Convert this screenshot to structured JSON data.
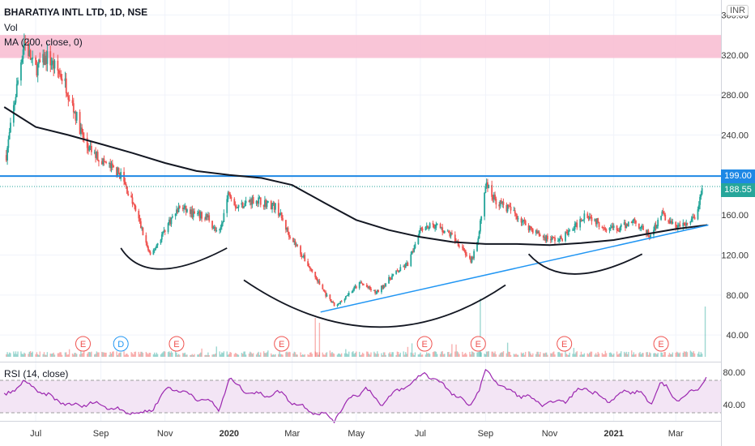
{
  "header": {
    "symbol_line": "BHARATIYA INTL LTD, 1D, NSE",
    "volume_label": "Vol",
    "ma_label": "MA (200, close, 0)",
    "rsi_label": "RSI (14, close)",
    "currency": "INR"
  },
  "price_tags": {
    "resistance": "199.00",
    "last": "188.55"
  },
  "colors": {
    "up": "#26a69a",
    "down": "#ef5350",
    "ma": "#131722",
    "trendline": "#2196f3",
    "resistance_line": "#1e88e5",
    "zone": "#f8bbd0",
    "rsi_line": "#9c27b0",
    "rsi_band": "#f3e5f5",
    "last_price": "#26a69a"
  },
  "chart_data": {
    "type": "candlestick",
    "x_tick_labels": [
      "Jul",
      "Sep",
      "Nov",
      "2020",
      "Mar",
      "May",
      "Jul",
      "Sep",
      "Nov",
      "2021",
      "Mar"
    ],
    "y_ticks": [
      40,
      80,
      120,
      160,
      240,
      280,
      320,
      360
    ],
    "y_range": [
      15,
      375
    ],
    "resistance_level": 199.0,
    "last_price": 188.55,
    "supply_zone": [
      317,
      340
    ],
    "price_path": [
      [
        "2019-06-03",
        220
      ],
      [
        "2019-06-20",
        335
      ],
      [
        "2019-06-30",
        305
      ],
      [
        "2019-07-12",
        318
      ],
      [
        "2019-07-28",
        295
      ],
      [
        "2019-08-18",
        228
      ],
      [
        "2019-09-05",
        212
      ],
      [
        "2019-09-20",
        200
      ],
      [
        "2019-10-05",
        162
      ],
      [
        "2019-10-18",
        118
      ],
      [
        "2019-11-03",
        150
      ],
      [
        "2019-11-15",
        168
      ],
      [
        "2019-11-30",
        160
      ],
      [
        "2019-12-12",
        158
      ],
      [
        "2019-12-22",
        138
      ],
      [
        "2020-01-01",
        185
      ],
      [
        "2020-01-08",
        168
      ],
      [
        "2020-01-25",
        176
      ],
      [
        "2020-02-15",
        168
      ],
      [
        "2020-02-25",
        145
      ],
      [
        "2020-03-15",
        112
      ],
      [
        "2020-04-05",
        75
      ],
      [
        "2020-04-12",
        68
      ],
      [
        "2020-04-20",
        78
      ],
      [
        "2020-05-05",
        92
      ],
      [
        "2020-05-20",
        82
      ],
      [
        "2020-06-05",
        100
      ],
      [
        "2020-06-20",
        112
      ],
      [
        "2020-07-01",
        148
      ],
      [
        "2020-07-15",
        150
      ],
      [
        "2020-07-30",
        140
      ],
      [
        "2020-08-10",
        128
      ],
      [
        "2020-08-18",
        112
      ],
      [
        "2020-08-25",
        135
      ],
      [
        "2020-09-01",
        192
      ],
      [
        "2020-09-10",
        175
      ],
      [
        "2020-09-25",
        165
      ],
      [
        "2020-10-10",
        150
      ],
      [
        "2020-10-25",
        138
      ],
      [
        "2020-11-10",
        135
      ],
      [
        "2020-11-25",
        148
      ],
      [
        "2020-12-05",
        162
      ],
      [
        "2020-12-20",
        150
      ],
      [
        "2021-01-05",
        145
      ],
      [
        "2021-01-20",
        155
      ],
      [
        "2021-02-05",
        138
      ],
      [
        "2021-02-15",
        162
      ],
      [
        "2021-02-28",
        148
      ],
      [
        "2021-03-10",
        150
      ],
      [
        "2021-03-20",
        158
      ],
      [
        "2021-03-28",
        192
      ]
    ],
    "ma200_path": [
      [
        "2019-06-01",
        268
      ],
      [
        "2019-07-01",
        248
      ],
      [
        "2019-08-01",
        240
      ],
      [
        "2019-09-01",
        231
      ],
      [
        "2019-10-01",
        222
      ],
      [
        "2019-11-01",
        212
      ],
      [
        "2019-12-01",
        204
      ],
      [
        "2020-01-01",
        200
      ],
      [
        "2020-02-01",
        197
      ],
      [
        "2020-03-01",
        190
      ],
      [
        "2020-04-01",
        172
      ],
      [
        "2020-05-01",
        155
      ],
      [
        "2020-06-01",
        145
      ],
      [
        "2020-07-01",
        138
      ],
      [
        "2020-08-01",
        133
      ],
      [
        "2020-09-01",
        131
      ],
      [
        "2020-10-01",
        131
      ],
      [
        "2020-11-01",
        130
      ],
      [
        "2020-12-01",
        132
      ],
      [
        "2021-01-01",
        135
      ],
      [
        "2021-02-01",
        141
      ],
      [
        "2021-03-01",
        146
      ],
      [
        "2021-03-31",
        150
      ]
    ],
    "trendline": [
      [
        "2020-03-28",
        63
      ],
      [
        "2021-04-01",
        150
      ]
    ],
    "drawn_arcs": [
      [
        [
          "2019-09-20",
          127
        ],
        [
          "2019-10-28",
          106
        ],
        [
          "2019-12-30",
          127
        ]
      ],
      [
        [
          "2020-01-15",
          95
        ],
        [
          "2020-05-20",
          48
        ],
        [
          "2020-09-20",
          90
        ]
      ],
      [
        [
          "2020-10-12",
          121
        ],
        [
          "2020-11-25",
          101
        ],
        [
          "2021-01-28",
          121
        ]
      ]
    ],
    "events": [
      {
        "label": "E",
        "date": "2019-08-15",
        "kind": "earnings"
      },
      {
        "label": "D",
        "date": "2019-09-20",
        "kind": "dividend"
      },
      {
        "label": "E",
        "date": "2019-11-12",
        "kind": "earnings"
      },
      {
        "label": "E",
        "date": "2020-02-20",
        "kind": "earnings"
      },
      {
        "label": "E",
        "date": "2020-07-05",
        "kind": "earnings"
      },
      {
        "label": "E",
        "date": "2020-08-25",
        "kind": "earnings"
      },
      {
        "label": "E",
        "date": "2020-11-15",
        "kind": "earnings"
      },
      {
        "label": "E",
        "date": "2021-02-15",
        "kind": "earnings"
      }
    ],
    "rsi": {
      "y_ticks": [
        40,
        80
      ],
      "band": [
        30,
        70
      ],
      "path": [
        [
          "2019-06-01",
          50
        ],
        [
          "2019-06-20",
          68
        ],
        [
          "2019-07-10",
          52
        ],
        [
          "2019-08-05",
          38
        ],
        [
          "2019-08-25",
          42
        ],
        [
          "2019-09-20",
          33
        ],
        [
          "2019-10-10",
          28
        ],
        [
          "2019-10-20",
          36
        ],
        [
          "2019-11-05",
          62
        ],
        [
          "2019-11-25",
          52
        ],
        [
          "2019-12-15",
          42
        ],
        [
          "2019-12-22",
          34
        ],
        [
          "2020-01-01",
          70
        ],
        [
          "2020-01-25",
          52
        ],
        [
          "2020-02-20",
          54
        ],
        [
          "2020-03-05",
          40
        ],
        [
          "2020-03-25",
          30
        ],
        [
          "2020-04-10",
          22
        ],
        [
          "2020-04-25",
          48
        ],
        [
          "2020-05-10",
          60
        ],
        [
          "2020-05-25",
          40
        ],
        [
          "2020-06-10",
          58
        ],
        [
          "2020-06-25",
          68
        ],
        [
          "2020-07-05",
          80
        ],
        [
          "2020-07-25",
          62
        ],
        [
          "2020-08-15",
          38
        ],
        [
          "2020-08-25",
          56
        ],
        [
          "2020-09-02",
          82
        ],
        [
          "2020-09-20",
          58
        ],
        [
          "2020-10-10",
          50
        ],
        [
          "2020-10-25",
          40
        ],
        [
          "2020-11-15",
          45
        ],
        [
          "2020-12-05",
          62
        ],
        [
          "2020-12-25",
          45
        ],
        [
          "2021-01-10",
          54
        ],
        [
          "2021-01-25",
          58
        ],
        [
          "2021-02-05",
          38
        ],
        [
          "2021-02-15",
          70
        ],
        [
          "2021-02-28",
          46
        ],
        [
          "2021-03-15",
          54
        ],
        [
          "2021-03-22",
          60
        ],
        [
          "2021-03-30",
          76
        ]
      ]
    }
  }
}
